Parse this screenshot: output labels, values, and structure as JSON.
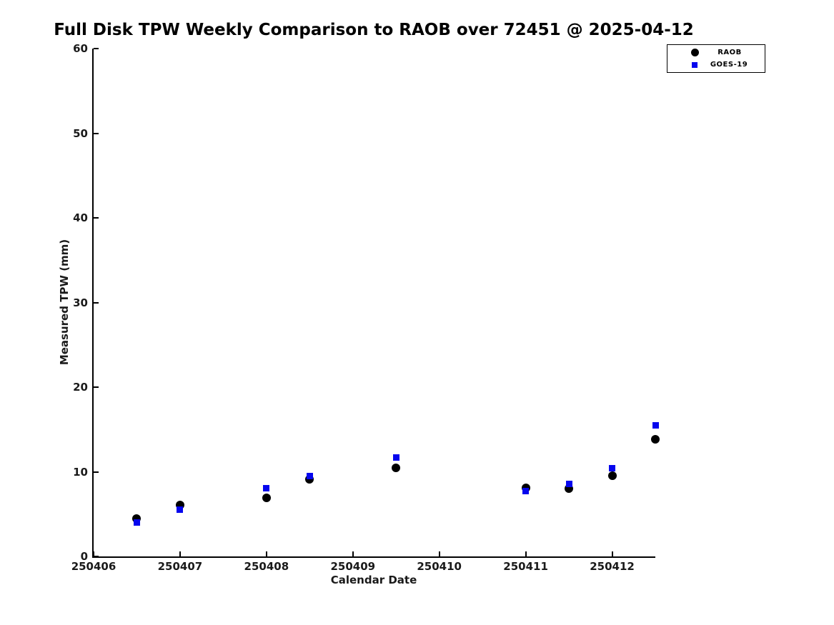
{
  "chart_data": {
    "type": "scatter",
    "title": "Full Disk TPW Weekly Comparison to RAOB over 72451 @ 2025-04-12",
    "xlabel": "Calendar Date",
    "ylabel": "Measured TPW (mm)",
    "xlim": [
      250406,
      250412.5
    ],
    "ylim": [
      0,
      60
    ],
    "xticks": [
      250406,
      250407,
      250408,
      250409,
      250410,
      250411,
      250412
    ],
    "yticks": [
      0,
      10,
      20,
      30,
      40,
      50,
      60
    ],
    "grid": false,
    "legend_position": "top-right",
    "x": [
      250406.5,
      250407.0,
      250408.0,
      250408.5,
      250409.5,
      250411.0,
      250411.5,
      250412.0,
      250412.5
    ],
    "series": [
      {
        "name": "RAOB",
        "marker": "circle",
        "color": "#000000",
        "marker_size": 12,
        "values": [
          4.5,
          6.1,
          6.9,
          9.1,
          10.5,
          8.1,
          8.0,
          9.5,
          13.8
        ]
      },
      {
        "name": "GOES-19",
        "marker": "square",
        "color": "#0606ee",
        "marker_size": 9,
        "values": [
          4.0,
          5.5,
          8.1,
          9.5,
          11.7,
          7.7,
          8.6,
          10.4,
          15.5
        ]
      }
    ]
  }
}
